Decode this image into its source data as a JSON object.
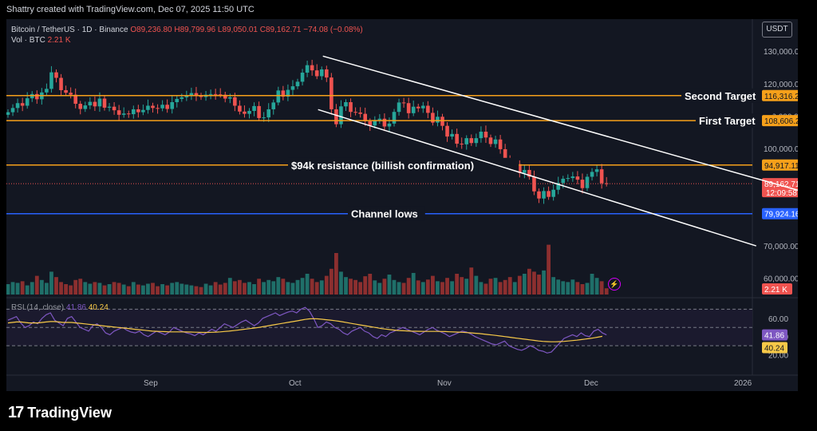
{
  "header": {
    "created_by": "Shattry created with TradingView.com, Dec 07, 2025 11:50 UTC",
    "symbol": "Bitcoin / TetherUS · 1D · Binance",
    "ohlc_open": "O89,236.80",
    "ohlc_high": "H89,799.96",
    "ohlc_low": "L89,050.01",
    "ohlc_close": "C89,162.71",
    "change": "−74.08 (−0.08%)",
    "vol_label": "Vol · BTC",
    "vol_value": "2.21 K",
    "currency_button": "USDT"
  },
  "rsi_legend": {
    "label": "RSI (14, close)",
    "rsi_value": "41.86",
    "ma_value": "40.24"
  },
  "brand": {
    "name": "TradingView"
  },
  "colors": {
    "up": "#26a69a",
    "down": "#ef5350",
    "target": "#f6a01a",
    "channel_low": "#2962ff",
    "trendline": "#ffffff",
    "rsi": "#7e57c2",
    "rsi_ma": "#f7c948",
    "background": "#131722"
  },
  "chart_data": {
    "type": "candlestick",
    "price_axis": {
      "range": [
        55000,
        133000
      ],
      "ticks": [
        "130,000.00",
        "120,000.00",
        "110,000.00",
        "100,000.00",
        "90,000.00",
        "80,000.00",
        "70,000.00",
        "60,000.00"
      ]
    },
    "time_axis": {
      "labels": [
        "Sep",
        "Oct",
        "Nov",
        "Dec",
        "2026"
      ]
    },
    "levels": [
      {
        "name": "Second Target",
        "price": 116316.26,
        "label": "116,316.26",
        "color": "#f6a01a"
      },
      {
        "name": "First Target",
        "price": 108606.28,
        "label": "108,606.28",
        "color": "#f6a01a"
      },
      {
        "name": "$94k resistance (billish confirmation)",
        "price": 94917.11,
        "label": "94,917.11",
        "color": "#f6a01a"
      },
      {
        "name": "Channel lows",
        "price": 79924.16,
        "label": "79,924.16",
        "color": "#2962ff"
      }
    ],
    "last_price": {
      "label": "89,162.71",
      "countdown": "12:09:58",
      "price": 89162.71
    },
    "volume_badge": "2.21 K",
    "rsi": {
      "range": [
        10,
        80
      ],
      "ticks": [
        "60.00",
        "40.00",
        "20.00"
      ],
      "levels": [
        70,
        50,
        30
      ],
      "value_label": "41.86",
      "ma_label": "40.24",
      "values": [
        58,
        60,
        62,
        55,
        50,
        52,
        56,
        54,
        60,
        64,
        66,
        58,
        55,
        52,
        60,
        62,
        56,
        50,
        48,
        46,
        52,
        54,
        50,
        44,
        42,
        46,
        48,
        50,
        47,
        45,
        44,
        46,
        42,
        40,
        43,
        46,
        44,
        42,
        45,
        50,
        48,
        46,
        44,
        43,
        41,
        44,
        42,
        45,
        48,
        46,
        50,
        54,
        52,
        50,
        53,
        56,
        58,
        55,
        52,
        55,
        60,
        62,
        64,
        66,
        63,
        65,
        67,
        68,
        66,
        70,
        72,
        68,
        60,
        50,
        52,
        56,
        54,
        50,
        48,
        44,
        42,
        46,
        48,
        50,
        46,
        44,
        40,
        38,
        42,
        40,
        44,
        46,
        48,
        50,
        48,
        46,
        44,
        42,
        45,
        48,
        50,
        47,
        45,
        43,
        40,
        42,
        44,
        46,
        45,
        43,
        40,
        38,
        36,
        34,
        32,
        31,
        33,
        35,
        30,
        28,
        26,
        25,
        27,
        30,
        28,
        25,
        24,
        22,
        23,
        28,
        33,
        38,
        40,
        42,
        40,
        44,
        41,
        40,
        46,
        48,
        44,
        41.86
      ],
      "ma": [
        55,
        55.5,
        56,
        56,
        55.5,
        55,
        55,
        55,
        55.5,
        56,
        56.5,
        56.5,
        56,
        55.5,
        55.5,
        55.5,
        55,
        54.5,
        54,
        53.5,
        53,
        52.5,
        52,
        51.5,
        51,
        50.5,
        50,
        49.5,
        49,
        48.5,
        48,
        47.5,
        47,
        46.5,
        46,
        45.8,
        45.6,
        45.4,
        45.2,
        45.2,
        45.2,
        45.2,
        45.1,
        45,
        44.8,
        44.7,
        44.6,
        44.6,
        44.7,
        44.9,
        45.2,
        45.6,
        46,
        46.5,
        47,
        47.6,
        48.2,
        48.8,
        49.4,
        50,
        50.8,
        51.6,
        52.4,
        53.2,
        54,
        54.8,
        55.6,
        56.4,
        57.2,
        58,
        58.8,
        59.4,
        59.6,
        59.4,
        59,
        58.5,
        58,
        57.4,
        56.8,
        56,
        55.2,
        54.4,
        53.6,
        52.8,
        52,
        51.2,
        50.4,
        49.6,
        48.8,
        48.2,
        47.6,
        47.1,
        46.7,
        46.4,
        46.2,
        46,
        45.9,
        45.8,
        45.7,
        45.7,
        45.7,
        45.7,
        45.6,
        45.5,
        45.3,
        45.1,
        44.9,
        44.7,
        44.4,
        44.1,
        43.7,
        43.3,
        42.8,
        42.3,
        41.8,
        41.2,
        40.6,
        40,
        39.4,
        38.8,
        38.2,
        37.6,
        37,
        36.4,
        35.8,
        35.2,
        34.8,
        34.5,
        34.3,
        34.3,
        34.5,
        34.8,
        35.2,
        35.6,
        36.1,
        36.7,
        37.3,
        37.9,
        38.6,
        39.4,
        40.24
      ]
    },
    "trendlines": [
      {
        "name": "channel-upper",
        "from": [
          14,
          128500
        ],
        "to": [
          164,
          87000
        ]
      },
      {
        "name": "channel-lower",
        "from": [
          13,
          112000
        ],
        "to": [
          155,
          70000
        ]
      }
    ],
    "candles_daily_close": [
      111200,
      112500,
      114000,
      113200,
      115500,
      116800,
      115200,
      117300,
      118400,
      123500,
      121800,
      118000,
      117200,
      116600,
      113800,
      112200,
      113300,
      114400,
      113000,
      115400,
      112600,
      112900,
      111800,
      110400,
      110800,
      110600,
      112100,
      111200,
      111900,
      113200,
      112500,
      112400,
      113500,
      112200,
      114300,
      115300,
      115800,
      116400,
      117100,
      116300,
      115900,
      116600,
      116800,
      116700,
      116600,
      115400,
      115800,
      113200,
      111400,
      110700,
      111600,
      113100,
      109400,
      109600,
      112100,
      114200,
      117900,
      116000,
      118100,
      119200,
      120600,
      123400,
      125700,
      124100,
      122300,
      124400,
      121900,
      112100,
      107500,
      113000,
      114300,
      111300,
      111100,
      110700,
      108400,
      107100,
      108800,
      109200,
      106800,
      107700,
      111300,
      114200,
      114000,
      110900,
      112900,
      112400,
      113200,
      111000,
      108000,
      109800,
      107000,
      103700,
      104500,
      101500,
      101300,
      103200,
      101700,
      103200,
      105200,
      103400,
      101400,
      102800,
      99800,
      96000,
      94500,
      95200,
      92500,
      93400,
      91300,
      86800,
      84600,
      86900,
      85100,
      87300,
      89400,
      90700,
      90900,
      91400,
      90400,
      87800,
      91300,
      92800,
      93600,
      89300,
      89200
    ],
    "volume_relative": [
      0.25,
      0.3,
      0.28,
      0.32,
      0.22,
      0.3,
      0.45,
      0.35,
      0.28,
      0.55,
      0.42,
      0.3,
      0.25,
      0.22,
      0.35,
      0.38,
      0.3,
      0.26,
      0.3,
      0.28,
      0.22,
      0.25,
      0.3,
      0.28,
      0.24,
      0.2,
      0.3,
      0.24,
      0.22,
      0.26,
      0.28,
      0.2,
      0.25,
      0.22,
      0.28,
      0.3,
      0.26,
      0.24,
      0.22,
      0.2,
      0.18,
      0.26,
      0.22,
      0.3,
      0.24,
      0.28,
      0.4,
      0.32,
      0.35,
      0.28,
      0.3,
      0.25,
      0.38,
      0.3,
      0.35,
      0.32,
      0.42,
      0.38,
      0.3,
      0.28,
      0.35,
      0.4,
      0.5,
      0.38,
      0.3,
      0.34,
      0.45,
      0.62,
      1.0,
      0.55,
      0.42,
      0.38,
      0.35,
      0.3,
      0.44,
      0.5,
      0.34,
      0.28,
      0.38,
      0.48,
      0.35,
      0.3,
      0.28,
      0.4,
      0.52,
      0.34,
      0.3,
      0.36,
      0.45,
      0.32,
      0.3,
      0.4,
      0.32,
      0.5,
      0.42,
      0.38,
      0.65,
      0.45,
      0.3,
      0.26,
      0.38,
      0.4,
      0.3,
      0.35,
      0.42,
      0.3,
      0.45,
      0.5,
      0.62,
      0.55,
      0.48,
      0.58,
      1.2,
      0.42,
      0.36,
      0.32,
      0.3,
      0.36,
      0.3,
      0.25,
      0.28,
      0.5,
      0.4,
      0.32,
      0.15
    ]
  }
}
